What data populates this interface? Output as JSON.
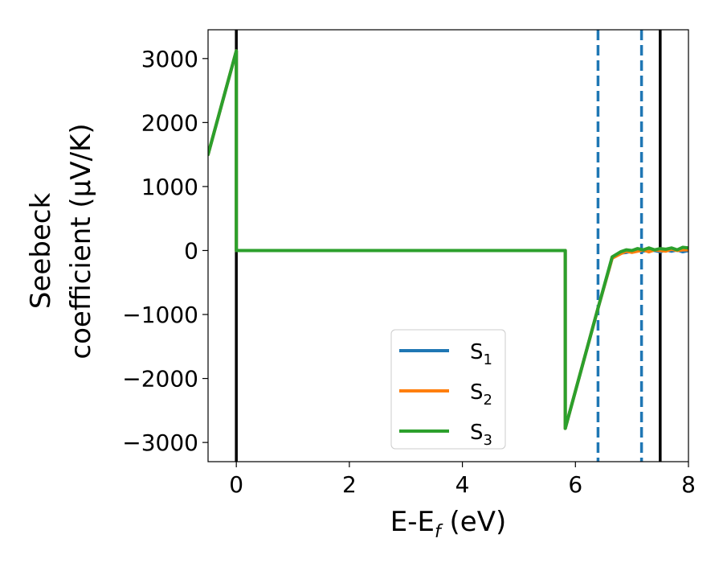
{
  "chart_data": {
    "type": "line",
    "xlabel": "E-E",
    "xlabel_sub": "f",
    "xlabel_unit": " (eV)",
    "ylabel_line1": "Seebeck",
    "ylabel_line2": "coefficient  (μV/K)",
    "xlim": [
      -0.5,
      8.0
    ],
    "ylim": [
      -3300,
      3450
    ],
    "xticks": [
      0,
      2,
      4,
      6,
      8
    ],
    "xtick_labels": [
      "0",
      "2",
      "4",
      "6",
      "8"
    ],
    "yticks": [
      -3000,
      -2000,
      -1000,
      0,
      1000,
      2000,
      3000
    ],
    "ytick_labels": [
      "−3000",
      "−2000",
      "−1000",
      "0",
      "1000",
      "2000",
      "3000"
    ],
    "grid": false,
    "legend_position": "lower-center",
    "series": [
      {
        "name": "S",
        "sub": "1",
        "color": "#1f77b4",
        "points": [
          [
            -0.5,
            1500
          ],
          [
            0.0,
            3120
          ],
          [
            0.0,
            0
          ],
          [
            5.82,
            0
          ],
          [
            5.82,
            -2780
          ],
          [
            6.4,
            -900
          ],
          [
            6.65,
            -120
          ],
          [
            6.8,
            -40
          ],
          [
            6.9,
            -30
          ],
          [
            7.0,
            -10
          ],
          [
            7.1,
            0
          ],
          [
            7.2,
            -10
          ],
          [
            7.3,
            10
          ],
          [
            7.4,
            0
          ],
          [
            7.5,
            -20
          ],
          [
            7.6,
            10
          ],
          [
            7.7,
            -10
          ],
          [
            7.8,
            10
          ],
          [
            7.9,
            -20
          ],
          [
            8.0,
            0
          ]
        ]
      },
      {
        "name": "S",
        "sub": "2",
        "color": "#ff7f0e",
        "points": [
          [
            -0.5,
            1500
          ],
          [
            0.0,
            3120
          ],
          [
            0.0,
            0
          ],
          [
            5.82,
            0
          ],
          [
            5.82,
            -2780
          ],
          [
            6.4,
            -900
          ],
          [
            6.65,
            -120
          ],
          [
            6.8,
            -50
          ],
          [
            6.9,
            -10
          ],
          [
            7.0,
            -30
          ],
          [
            7.1,
            -10
          ],
          [
            7.2,
            10
          ],
          [
            7.3,
            -20
          ],
          [
            7.4,
            10
          ],
          [
            7.5,
            0
          ],
          [
            7.6,
            -10
          ],
          [
            7.7,
            20
          ],
          [
            7.8,
            0
          ],
          [
            7.9,
            10
          ],
          [
            8.0,
            10
          ]
        ]
      },
      {
        "name": "S",
        "sub": "3",
        "color": "#2ca02c",
        "points": [
          [
            -0.5,
            1500
          ],
          [
            0.0,
            3120
          ],
          [
            0.0,
            0
          ],
          [
            5.82,
            0
          ],
          [
            5.82,
            -2780
          ],
          [
            6.4,
            -900
          ],
          [
            6.65,
            -100
          ],
          [
            6.8,
            -20
          ],
          [
            6.9,
            10
          ],
          [
            7.0,
            0
          ],
          [
            7.1,
            30
          ],
          [
            7.2,
            10
          ],
          [
            7.3,
            40
          ],
          [
            7.4,
            10
          ],
          [
            7.5,
            30
          ],
          [
            7.6,
            20
          ],
          [
            7.7,
            40
          ],
          [
            7.8,
            10
          ],
          [
            7.9,
            50
          ],
          [
            8.0,
            40
          ]
        ]
      }
    ],
    "vlines": [
      {
        "x": 0.0,
        "style": "solid",
        "color": "#000000"
      },
      {
        "x": 7.5,
        "style": "solid",
        "color": "#000000"
      },
      {
        "x": 6.4,
        "style": "dashed",
        "color": "#1f77b4"
      },
      {
        "x": 7.17,
        "style": "dashed",
        "color": "#1f77b4"
      }
    ]
  }
}
